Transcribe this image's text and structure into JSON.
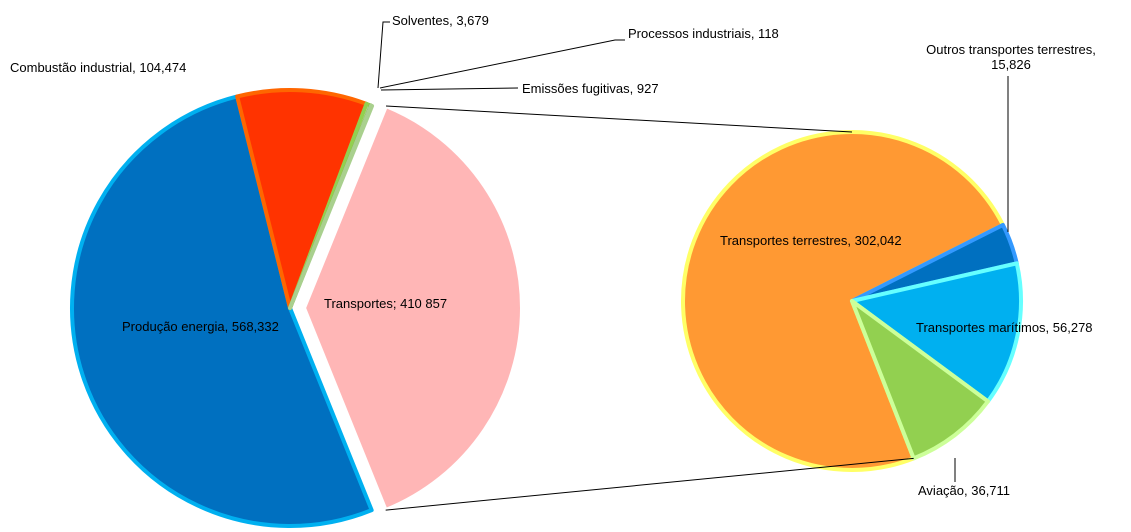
{
  "chart_data": [
    {
      "type": "pie",
      "values": [
        568332,
        104474,
        3679,
        118,
        927,
        410857
      ],
      "value_labels": [
        "Produção energia, 568,332",
        "Combustão industrial, 104,474",
        "Solventes, 3,679",
        "Processos industriais, 118",
        "Emissões fugitivas, 927",
        "Transportes; 410 857"
      ],
      "colors": [
        "#0070C0",
        "#FF3300",
        "#C6E0B4",
        "#9BBB59",
        "#E2EFDA",
        "#FFB6B6"
      ],
      "border_colors": [
        "#00B0F0",
        "#FF6600",
        "#92D050",
        "#76933C",
        "#A9D08E",
        "#FFFFFF"
      ]
    },
    {
      "type": "pie",
      "values": [
        302042,
        15826,
        56278,
        36711
      ],
      "value_labels": [
        "Transportes terrestres, 302,042",
        "Outros transportes terrestres, 15,826",
        "Transportes marítimos, 56,278",
        "Aviação, 36,711"
      ],
      "colors": [
        "#FF9933",
        "#0070C0",
        "#00B0F0",
        "#92D050"
      ],
      "border_colors": [
        "#FFFF66",
        "#3399FF",
        "#66FFFF",
        "#CCFF99"
      ]
    }
  ]
}
